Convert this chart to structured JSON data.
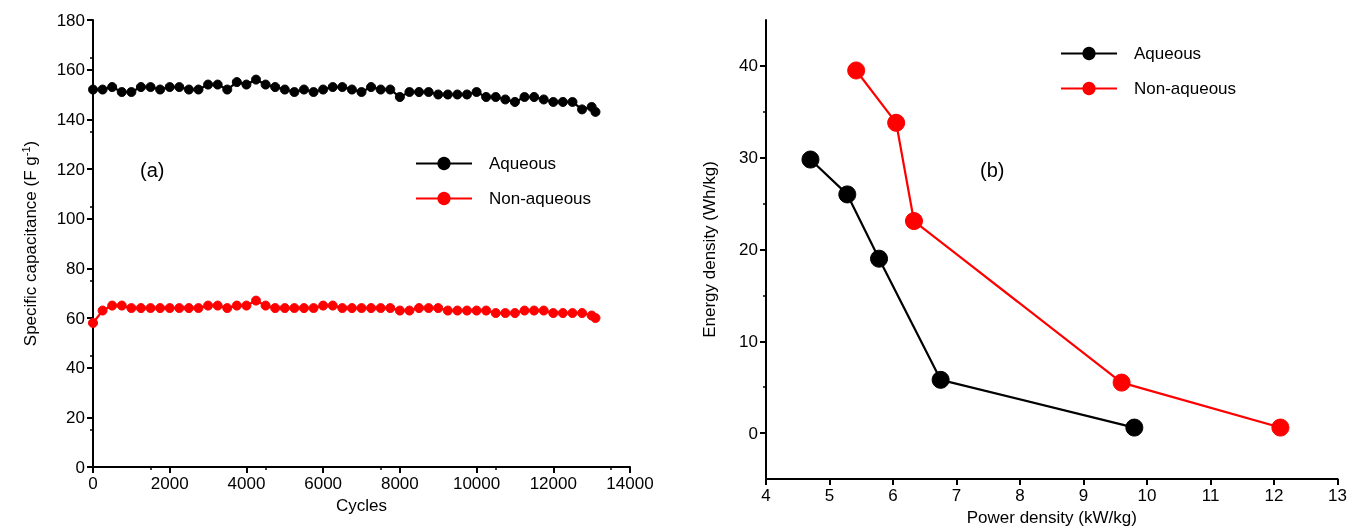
{
  "chart_data": [
    {
      "type": "line",
      "xlabel": "Cycles",
      "ylabel": "Specific capacitance (F g$^{-1}$)",
      "annotations": [
        "(a)"
      ],
      "xlim": [
        0,
        14000
      ],
      "xticks": [
        0,
        2000,
        4000,
        6000,
        8000,
        10000,
        12000,
        14000
      ],
      "ylim": [
        0,
        180
      ],
      "yticks": [
        0,
        20,
        40,
        60,
        80,
        100,
        120,
        140,
        160,
        180
      ],
      "grid": false,
      "legend": "right",
      "marker": "circle",
      "line_style": "solid",
      "x": [
        0,
        250,
        500,
        750,
        1000,
        1250,
        1500,
        1750,
        2000,
        2250,
        2500,
        2750,
        3000,
        3250,
        3500,
        3750,
        4000,
        4250,
        4500,
        4750,
        5000,
        5250,
        5500,
        5750,
        6000,
        6250,
        6500,
        6750,
        7000,
        7250,
        7500,
        7750,
        8000,
        8250,
        8500,
        8750,
        9000,
        9250,
        9500,
        9750,
        10000,
        10250,
        10500,
        10750,
        11000,
        11250,
        11500,
        11750,
        12000,
        12250,
        12500,
        12750,
        13000,
        13100
      ],
      "series": [
        {
          "name": "Aqueous",
          "color": "#000000",
          "values": [
            152,
            152,
            153,
            151,
            151,
            153,
            153,
            152,
            153,
            153,
            152,
            152,
            154,
            154,
            152,
            155,
            154,
            156,
            154,
            153,
            152,
            151,
            152,
            151,
            152,
            153,
            153,
            152,
            151,
            153,
            152,
            152,
            149,
            151,
            151,
            151,
            150,
            150,
            150,
            150,
            151,
            149,
            149,
            148,
            147,
            149,
            149,
            148,
            147,
            147,
            147,
            144,
            145,
            143
          ]
        },
        {
          "name": "Non-aqueous",
          "color": "#ff0000",
          "values": [
            58,
            63,
            65,
            65,
            64,
            64,
            64,
            64,
            64,
            64,
            64,
            64,
            65,
            65,
            64,
            65,
            65,
            67,
            65,
            64,
            64,
            64,
            64,
            64,
            65,
            65,
            64,
            64,
            64,
            64,
            64,
            64,
            63,
            63,
            64,
            64,
            64,
            63,
            63,
            63,
            63,
            63,
            62,
            62,
            62,
            63,
            63,
            63,
            62,
            62,
            62,
            62,
            61,
            60
          ]
        }
      ]
    },
    {
      "type": "line",
      "xlabel": "Power density (kW/kg)",
      "ylabel": "Energy density (Wh/kg)",
      "annotations": [
        "(b)"
      ],
      "xlim": [
        4,
        13
      ],
      "xticks": [
        4,
        5,
        6,
        7,
        8,
        9,
        10,
        11,
        12,
        13
      ],
      "ylim": [
        -5,
        45
      ],
      "yticks": [
        0,
        10,
        20,
        30,
        40
      ],
      "grid": false,
      "legend": "top right",
      "marker": "circle",
      "line_style": "solid",
      "series": [
        {
          "name": "Aqueous",
          "color": "#000000",
          "x": [
            4.7,
            5.28,
            5.78,
            6.75,
            9.8
          ],
          "values": [
            29.8,
            26,
            19,
            5.8,
            0.6
          ]
        },
        {
          "name": "Non-aqueous",
          "color": "#ff0000",
          "x": [
            5.42,
            6.05,
            6.33,
            9.6,
            12.1
          ],
          "values": [
            39.5,
            33.8,
            23.1,
            5.5,
            0.6
          ]
        }
      ]
    }
  ]
}
